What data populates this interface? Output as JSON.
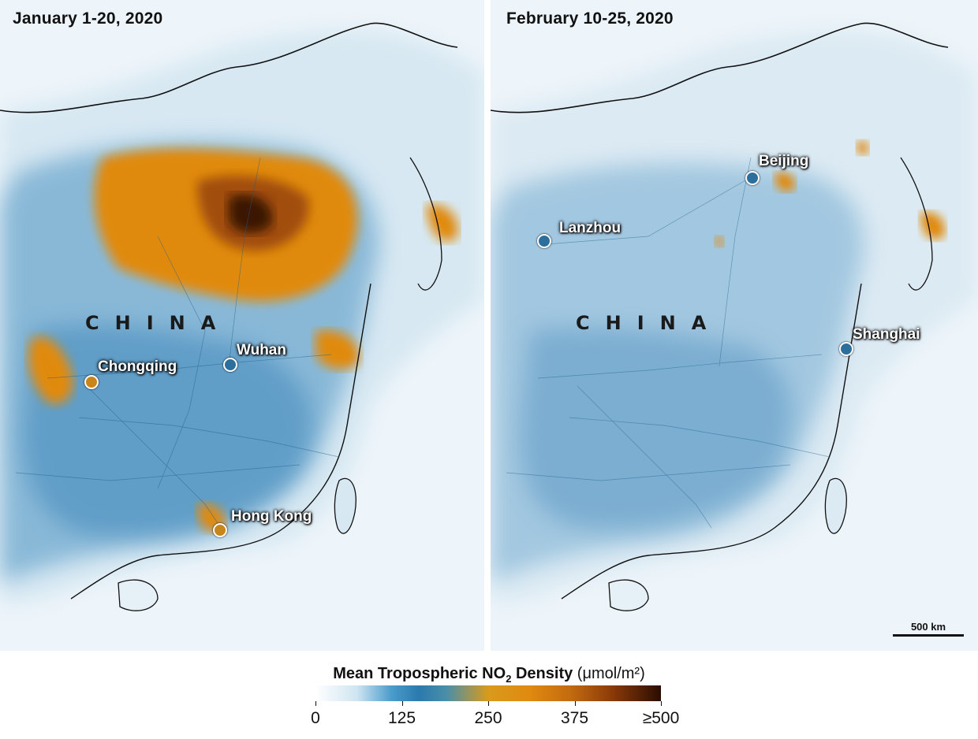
{
  "panels": [
    {
      "title": "January 1-20, 2020",
      "country": "CHINA",
      "cities": [
        "Chongqing",
        "Wuhan",
        "Hong Kong"
      ]
    },
    {
      "title": "February 10-25, 2020",
      "country": "CHINA",
      "cities": [
        "Beijing",
        "Lanzhou",
        "Shanghai"
      ]
    }
  ],
  "scalebar": {
    "label": "500 km"
  },
  "legend": {
    "title_main": "Mean Tropospheric NO",
    "title_sub": "2",
    "title_rest": " Density",
    "title_units": "(μmol/m²)",
    "ticks": [
      "0",
      "125",
      "250",
      "375",
      "≥500"
    ]
  },
  "colors": {
    "background": "#eef5fa",
    "low": "#ffffff",
    "mid_blue": "#2b79ad",
    "orange": "#e08a10",
    "high": "#2a0d02"
  }
}
